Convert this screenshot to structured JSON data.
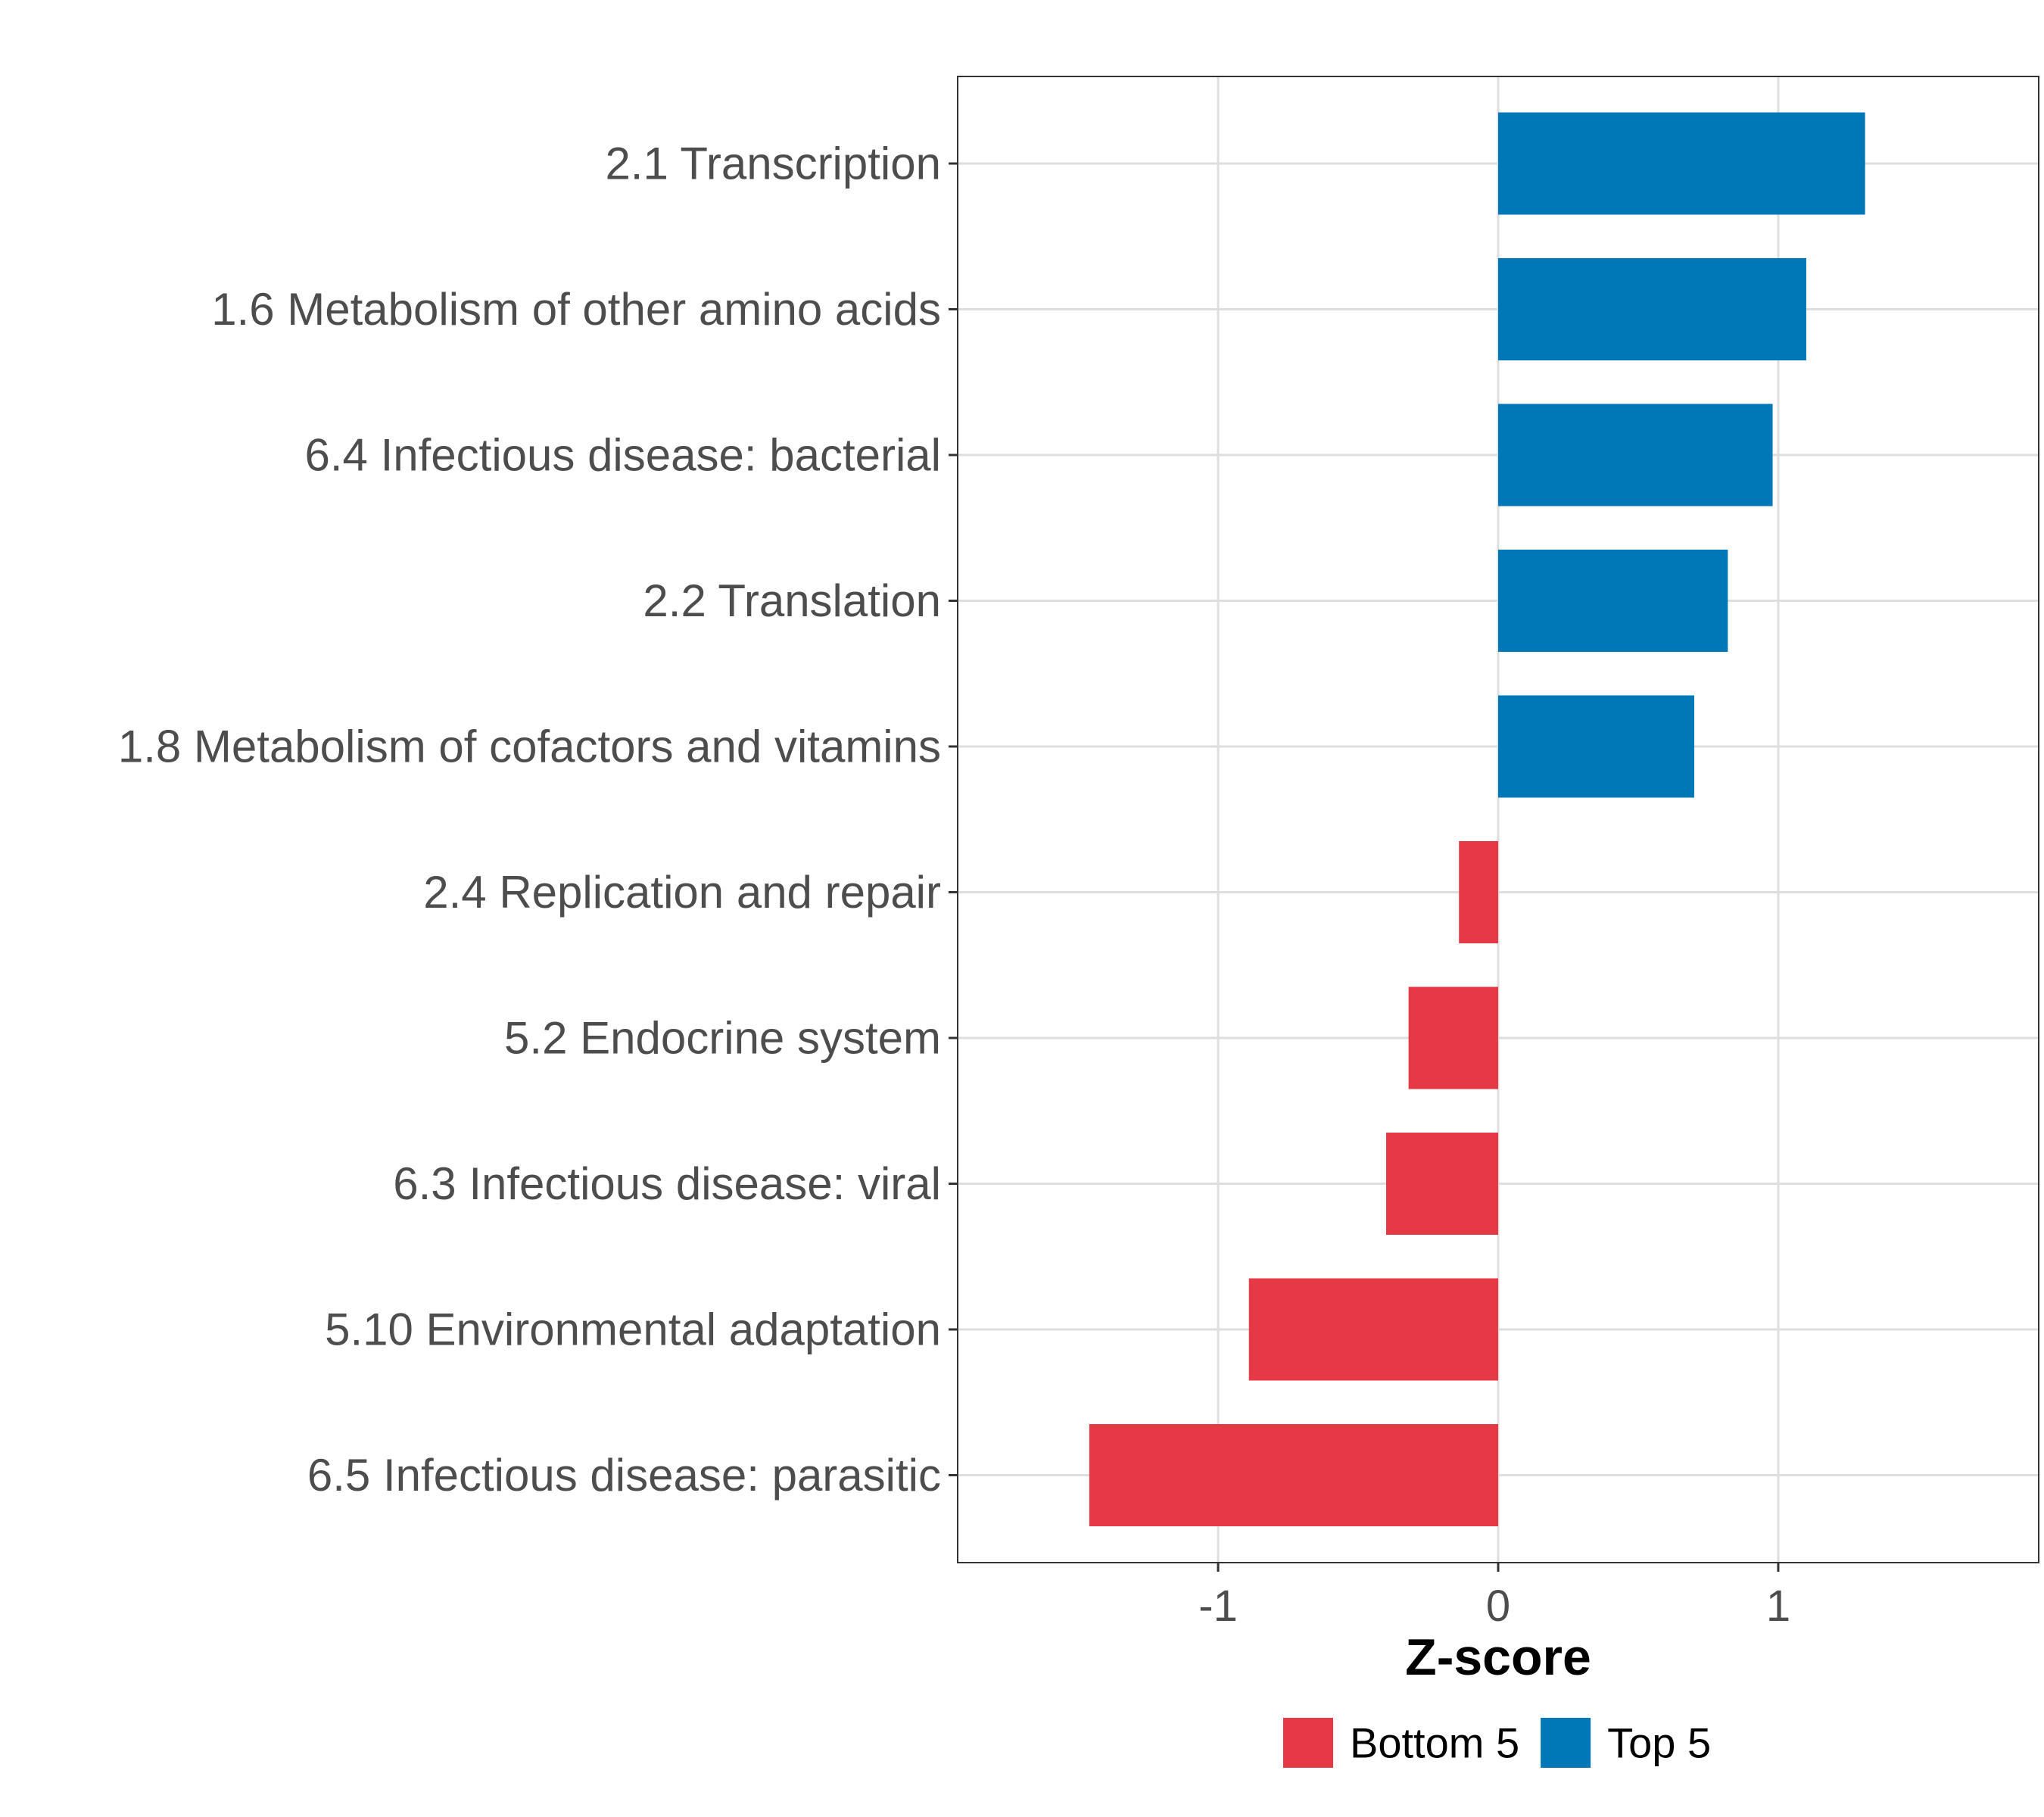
{
  "chart_data": {
    "type": "bar",
    "orientation": "horizontal",
    "title": "",
    "xlabel": "Z-score",
    "ylabel": "",
    "xlim": [
      -1.93,
      1.93
    ],
    "xticks": [
      -1,
      0,
      1
    ],
    "xtick_labels": [
      "-1",
      "0",
      "1"
    ],
    "grid": true,
    "legend_position": "bottom",
    "categories": [
      "2.1 Transcription",
      "1.6 Metabolism of other amino acids",
      "6.4 Infectious disease: bacterial",
      "2.2 Translation",
      "1.8 Metabolism of cofactors and vitamins",
      "2.4 Replication and repair",
      "5.2 Endocrine system",
      "6.3 Infectious disease: viral",
      "5.10 Environmental adaptation",
      "6.5 Infectious disease: parasitic"
    ],
    "values": [
      1.31,
      1.1,
      0.98,
      0.82,
      0.7,
      -0.14,
      -0.32,
      -0.4,
      -0.89,
      -1.46
    ],
    "groups": [
      "Top 5",
      "Top 5",
      "Top 5",
      "Top 5",
      "Top 5",
      "Bottom 5",
      "Bottom 5",
      "Bottom 5",
      "Bottom 5",
      "Bottom 5"
    ],
    "legend": [
      {
        "label": "Bottom 5",
        "color": "#e63946"
      },
      {
        "label": "Top 5",
        "color": "#0077b6"
      }
    ]
  }
}
